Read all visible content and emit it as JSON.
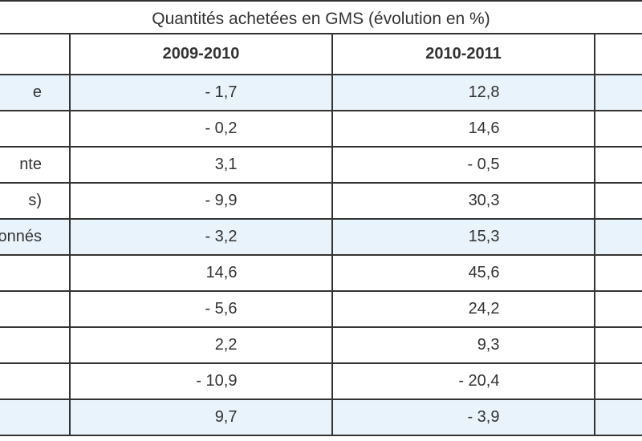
{
  "table": {
    "title": "Quantités achetées en GMS (évolution en %)",
    "headers": [
      "",
      "2009-2010",
      "2010-2011",
      ""
    ],
    "rows": [
      {
        "label": "e",
        "v1": "- 1,7",
        "v2": "12,8",
        "shaded": true
      },
      {
        "label": "",
        "v1": "- 0,2",
        "v2": "14,6",
        "shaded": false
      },
      {
        "label": "nte",
        "v1": "3,1",
        "v2": "- 0,5",
        "shaded": false
      },
      {
        "label": "s)",
        "v1": "- 9,9",
        "v2": "30,3",
        "shaded": false
      },
      {
        "label": "onnés",
        "v1": "- 3,2",
        "v2": "15,3",
        "shaded": true
      },
      {
        "label": "",
        "v1": "14,6",
        "v2": "45,6",
        "shaded": false
      },
      {
        "label": "",
        "v1": "- 5,6",
        "v2": "24,2",
        "shaded": false
      },
      {
        "label": "",
        "v1": "2,2",
        "v2": "9,3",
        "shaded": false
      },
      {
        "label": "",
        "v1": "- 10,9",
        "v2": "- 20,4",
        "shaded": false
      },
      {
        "label": "",
        "v1": "9,7",
        "v2": "- 3,9",
        "shaded": true
      }
    ]
  }
}
